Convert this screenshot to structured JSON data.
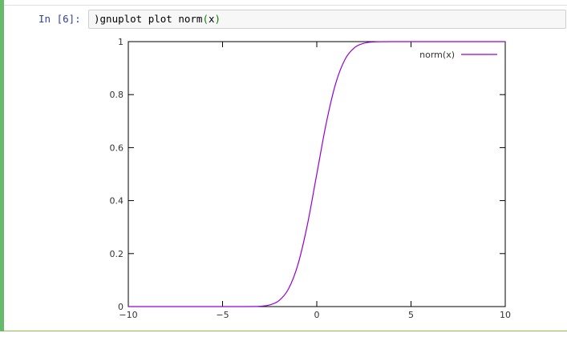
{
  "cell": {
    "prompt": "In [6]:",
    "code": {
      "before": ")gnuplot plot norm",
      "paren_open": "(",
      "arg": "x",
      "paren_close": ")"
    },
    "colors": {
      "bar": "#66bb6a",
      "prompt": "#303f9f",
      "input_bg": "#f7f7f7"
    }
  },
  "chart_data": {
    "type": "line",
    "title": "",
    "xlabel": "",
    "ylabel": "",
    "xlim": [
      -10,
      10
    ],
    "ylim": [
      0,
      1
    ],
    "x_ticks": [
      {
        "value": -10,
        "label": "−10"
      },
      {
        "value": -5,
        "label": "−5"
      },
      {
        "value": 0,
        "label": "0"
      },
      {
        "value": 5,
        "label": "5"
      },
      {
        "value": 10,
        "label": "10"
      }
    ],
    "y_ticks": [
      {
        "value": 0,
        "label": "0"
      },
      {
        "value": 0.2,
        "label": "0.2"
      },
      {
        "value": 0.4,
        "label": "0.4"
      },
      {
        "value": 0.6,
        "label": "0.6"
      },
      {
        "value": 0.8,
        "label": "0.8"
      },
      {
        "value": 1,
        "label": "1"
      }
    ],
    "legend_position": "top-right",
    "grid": false,
    "series": [
      {
        "name": "norm(x)",
        "color": "#9400d3",
        "x": [
          -10,
          -4,
          -3,
          -2.5,
          -2,
          -1.5,
          -1,
          -0.5,
          0,
          0.5,
          1,
          1.5,
          2,
          2.5,
          3,
          4,
          10
        ],
        "y": [
          0,
          3e-05,
          0.0013,
          0.0062,
          0.0228,
          0.0668,
          0.1587,
          0.3085,
          0.5,
          0.6915,
          0.8413,
          0.9332,
          0.9772,
          0.9938,
          0.9987,
          0.99997,
          1
        ]
      }
    ]
  }
}
